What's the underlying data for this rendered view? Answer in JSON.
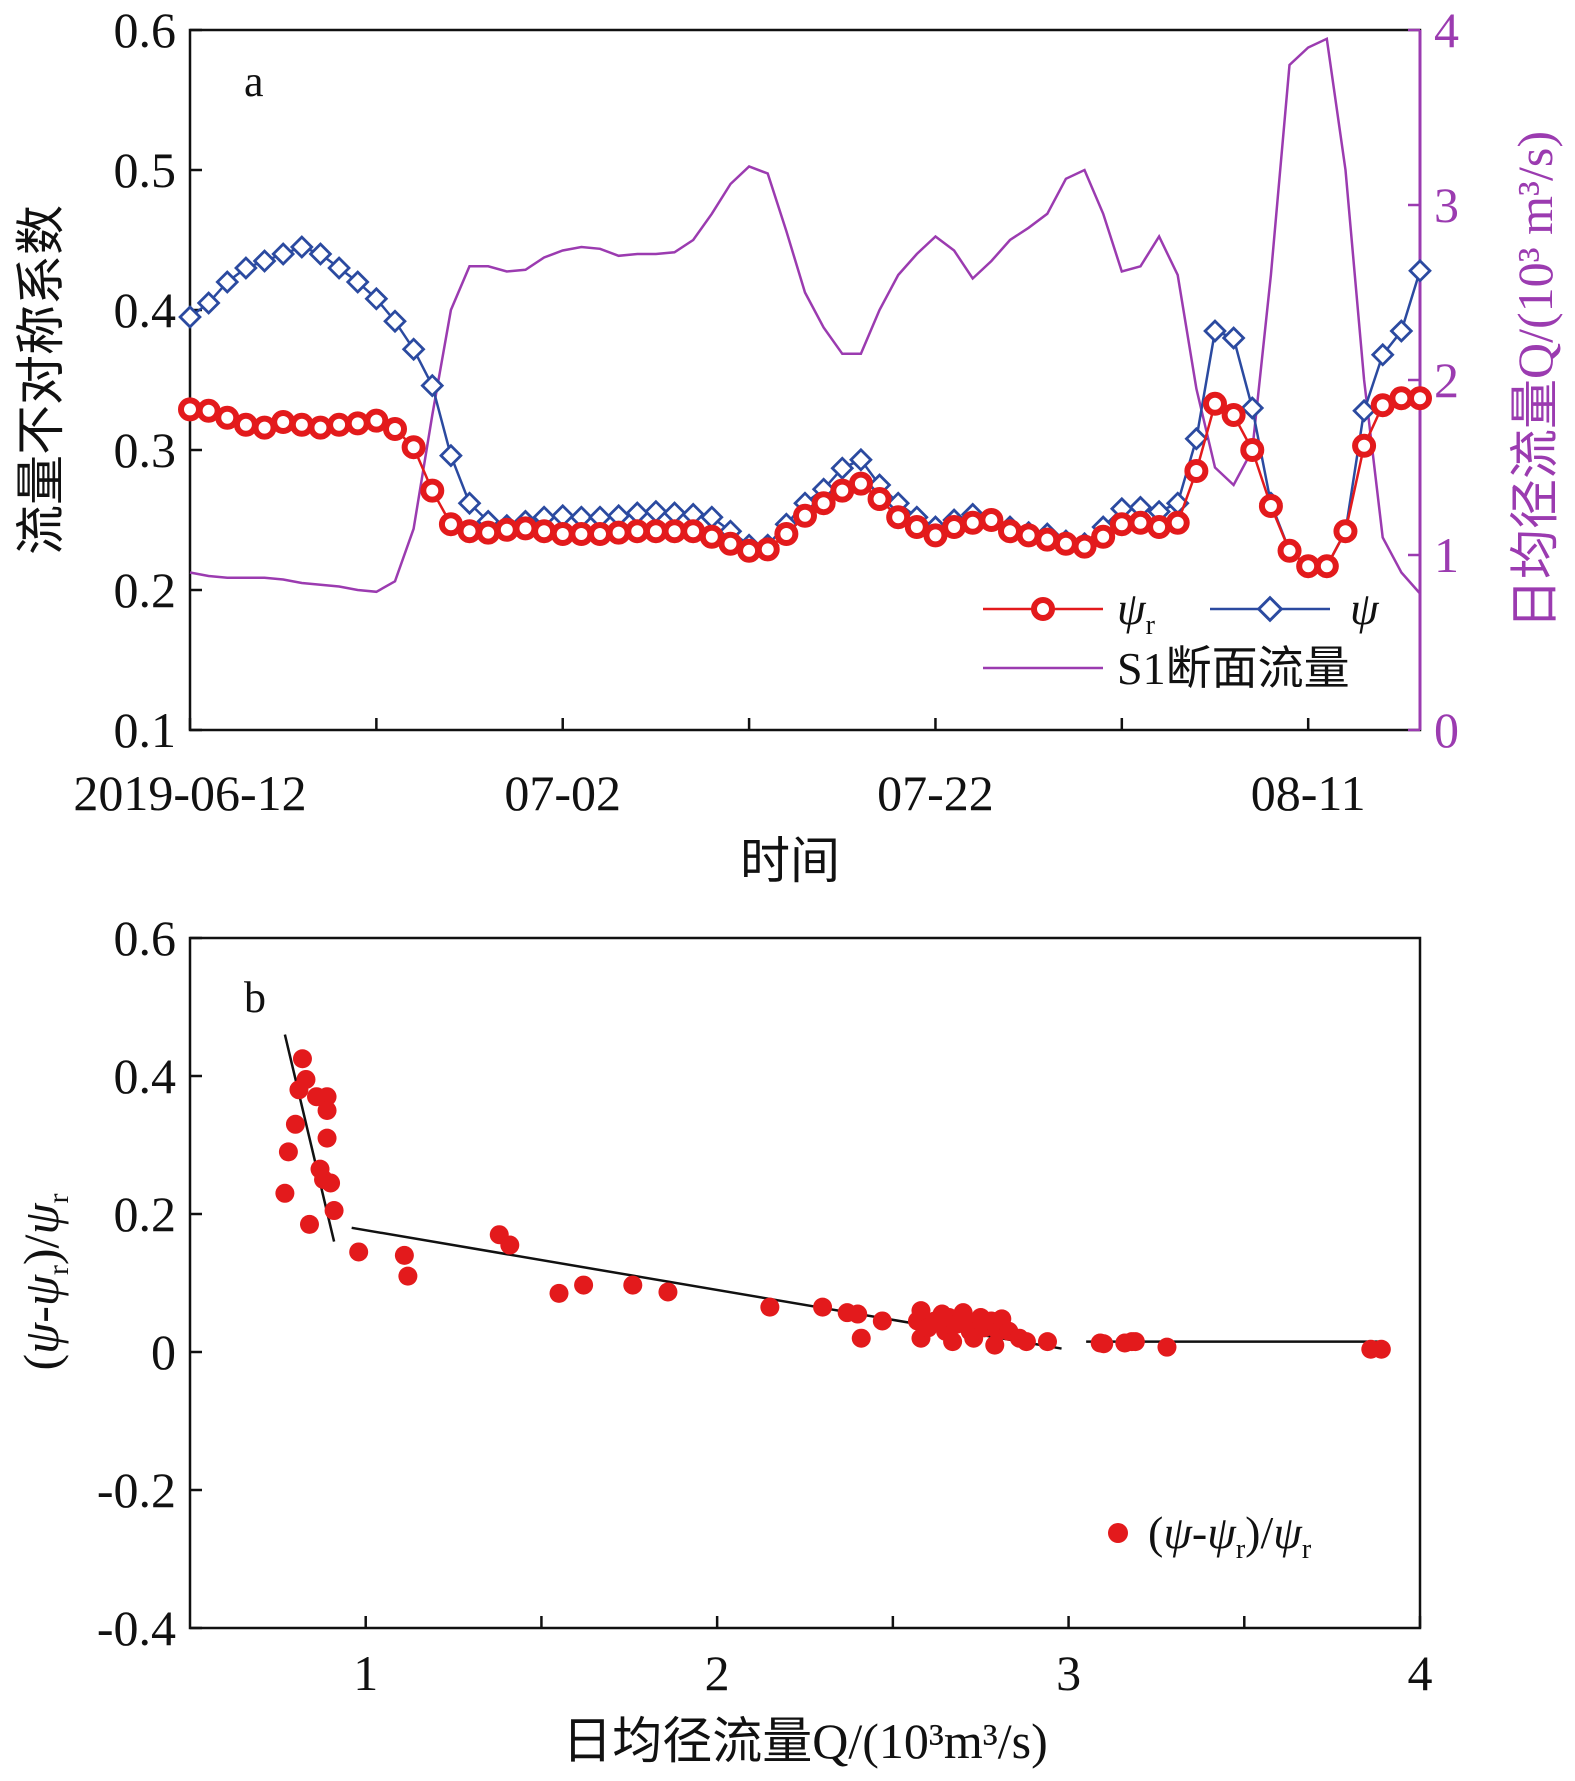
{
  "colors": {
    "psi_r": "#e31a1c",
    "psi": "#2b4aa0",
    "flow": "#9b3bb0",
    "trend": "#111111",
    "axis": "#111111"
  },
  "chart_data": [
    {
      "panel": "a",
      "type": "line",
      "xlabel": "时间",
      "ylabel": "流量不对称系数",
      "y2label": "日均径流量Q/(10³ m³/s)",
      "ylim": [
        0.1,
        0.6
      ],
      "y2lim": [
        0,
        4
      ],
      "xlim_day": [
        0,
        66
      ],
      "y_ticks": [
        "0.1",
        "0.2",
        "0.3",
        "0.4",
        "0.5",
        "0.6"
      ],
      "y2_ticks": [
        "0",
        "1",
        "2",
        "3",
        "4"
      ],
      "x_tick_labels": [
        "2019-06-12",
        "07-02",
        "07-22",
        "08-11"
      ],
      "x_tick_label_days": [
        0,
        20,
        40,
        60
      ],
      "x_minor_tick_days": [
        10,
        30,
        50
      ],
      "x": [
        "06-12",
        "06-13",
        "06-14",
        "06-15",
        "06-16",
        "06-17",
        "06-18",
        "06-19",
        "06-20",
        "06-21",
        "06-22",
        "06-23",
        "06-24",
        "06-25",
        "06-26",
        "06-27",
        "06-28",
        "06-29",
        "06-30",
        "07-01",
        "07-02",
        "07-03",
        "07-04",
        "07-05",
        "07-06",
        "07-07",
        "07-08",
        "07-09",
        "07-10",
        "07-11",
        "07-12",
        "07-13",
        "07-14",
        "07-15",
        "07-16",
        "07-17",
        "07-18",
        "07-19",
        "07-20",
        "07-21",
        "07-22",
        "07-23",
        "07-24",
        "07-25",
        "07-26",
        "07-27",
        "07-28",
        "07-29",
        "07-30",
        "07-31",
        "08-01",
        "08-02",
        "08-03",
        "08-04",
        "08-05",
        "08-06",
        "08-07",
        "08-08",
        "08-09",
        "08-10",
        "08-11",
        "08-12",
        "08-13",
        "08-14",
        "08-15",
        "08-16",
        "08-17"
      ],
      "series": [
        {
          "name": "ψr",
          "legend_main": "ψ",
          "legend_sub": "r",
          "axis": "left",
          "marker": "circle",
          "values": [
            0.329,
            0.328,
            0.323,
            0.318,
            0.316,
            0.32,
            0.318,
            0.316,
            0.318,
            0.319,
            0.321,
            0.315,
            0.302,
            0.271,
            0.247,
            0.242,
            0.241,
            0.243,
            0.244,
            0.242,
            0.24,
            0.24,
            0.24,
            0.241,
            0.242,
            0.242,
            0.242,
            0.242,
            0.238,
            0.233,
            0.228,
            0.229,
            0.24,
            0.253,
            0.262,
            0.271,
            0.276,
            0.265,
            0.252,
            0.245,
            0.239,
            0.245,
            0.248,
            0.25,
            0.242,
            0.239,
            0.236,
            0.233,
            0.231,
            0.238,
            0.247,
            0.248,
            0.245,
            0.248,
            0.285,
            0.333,
            0.325,
            0.3,
            0.26,
            0.228,
            0.217,
            0.217,
            0.242,
            0.303,
            0.332,
            0.337,
            0.337
          ]
        },
        {
          "name": "ψ",
          "legend_main": "ψ",
          "legend_sub": "",
          "axis": "left",
          "marker": "diamond",
          "values": [
            0.395,
            0.405,
            0.42,
            0.43,
            0.435,
            0.44,
            0.445,
            0.44,
            0.43,
            0.42,
            0.408,
            0.392,
            0.372,
            0.346,
            0.296,
            0.262,
            0.249,
            0.246,
            0.249,
            0.252,
            0.253,
            0.252,
            0.252,
            0.253,
            0.255,
            0.256,
            0.255,
            0.254,
            0.252,
            0.242,
            0.232,
            0.232,
            0.247,
            0.262,
            0.272,
            0.287,
            0.293,
            0.275,
            0.262,
            0.252,
            0.245,
            0.25,
            0.254,
            0.25,
            0.245,
            0.241,
            0.24,
            0.235,
            0.233,
            0.245,
            0.258,
            0.259,
            0.256,
            0.262,
            0.308,
            0.385,
            0.38,
            0.33,
            0.262,
            0.228,
            0.217,
            0.217,
            0.242,
            0.328,
            0.368,
            0.385,
            0.428
          ]
        },
        {
          "name": "S1断面流量",
          "axis": "right",
          "marker": "none",
          "values": [
            0.9,
            0.88,
            0.87,
            0.87,
            0.87,
            0.86,
            0.84,
            0.83,
            0.82,
            0.8,
            0.79,
            0.85,
            1.15,
            1.8,
            2.4,
            2.65,
            2.65,
            2.62,
            2.63,
            2.7,
            2.74,
            2.76,
            2.75,
            2.71,
            2.72,
            2.72,
            2.73,
            2.8,
            2.95,
            3.12,
            3.22,
            3.18,
            2.85,
            2.5,
            2.3,
            2.15,
            2.15,
            2.4,
            2.6,
            2.72,
            2.82,
            2.74,
            2.58,
            2.68,
            2.8,
            2.87,
            2.95,
            3.15,
            3.2,
            2.95,
            2.62,
            2.65,
            2.82,
            2.6,
            1.95,
            1.5,
            1.4,
            1.6,
            2.6,
            3.8,
            3.9,
            3.95,
            3.2,
            2.0,
            1.1,
            0.9,
            0.78
          ]
        }
      ],
      "legend": {
        "placement": "bottom-right"
      }
    },
    {
      "panel": "b",
      "type": "scatter",
      "xlabel": "日均径流量Q/(10³m³/s)",
      "ylabel": "(ψ-ψr)/ψr",
      "xlim": [
        0.5,
        4
      ],
      "ylim": [
        -0.4,
        0.6
      ],
      "x_ticks": [
        "1",
        "2",
        "3",
        "4"
      ],
      "y_ticks": [
        "-0.4",
        "-0.2",
        "0",
        "0.2",
        "0.4",
        "0.6"
      ],
      "points": [
        [
          0.77,
          0.23
        ],
        [
          0.78,
          0.29
        ],
        [
          0.8,
          0.33
        ],
        [
          0.81,
          0.38
        ],
        [
          0.82,
          0.425
        ],
        [
          0.83,
          0.395
        ],
        [
          0.84,
          0.185
        ],
        [
          0.86,
          0.37
        ],
        [
          0.87,
          0.265
        ],
        [
          0.88,
          0.25
        ],
        [
          0.89,
          0.37
        ],
        [
          0.89,
          0.35
        ],
        [
          0.89,
          0.31
        ],
        [
          0.9,
          0.245
        ],
        [
          0.91,
          0.205
        ],
        [
          0.98,
          0.145
        ],
        [
          1.11,
          0.14
        ],
        [
          1.12,
          0.11
        ],
        [
          1.38,
          0.17
        ],
        [
          1.41,
          0.155
        ],
        [
          1.55,
          0.085
        ],
        [
          1.62,
          0.097
        ],
        [
          1.76,
          0.097
        ],
        [
          1.86,
          0.087
        ],
        [
          2.15,
          0.065
        ],
        [
          2.3,
          0.065
        ],
        [
          2.37,
          0.057
        ],
        [
          2.4,
          0.055
        ],
        [
          2.41,
          0.02
        ],
        [
          2.47,
          0.045
        ],
        [
          2.57,
          0.045
        ],
        [
          2.58,
          0.06
        ],
        [
          2.58,
          0.02
        ],
        [
          2.6,
          0.035
        ],
        [
          2.62,
          0.045
        ],
        [
          2.64,
          0.055
        ],
        [
          2.65,
          0.03
        ],
        [
          2.66,
          0.05
        ],
        [
          2.67,
          0.015
        ],
        [
          2.68,
          0.04
        ],
        [
          2.7,
          0.057
        ],
        [
          2.71,
          0.045
        ],
        [
          2.72,
          0.03
        ],
        [
          2.73,
          0.02
        ],
        [
          2.75,
          0.05
        ],
        [
          2.76,
          0.035
        ],
        [
          2.78,
          0.045
        ],
        [
          2.79,
          0.01
        ],
        [
          2.8,
          0.03
        ],
        [
          2.81,
          0.048
        ],
        [
          2.83,
          0.03
        ],
        [
          2.86,
          0.02
        ],
        [
          2.88,
          0.015
        ],
        [
          2.94,
          0.015
        ],
        [
          3.09,
          0.013
        ],
        [
          3.1,
          0.012
        ],
        [
          3.16,
          0.013
        ],
        [
          3.18,
          0.015
        ],
        [
          3.19,
          0.015
        ],
        [
          3.28,
          0.007
        ],
        [
          3.86,
          0.004
        ],
        [
          3.89,
          0.004
        ]
      ],
      "trend_lines": [
        {
          "from": [
            0.77,
            0.46
          ],
          "to": [
            0.91,
            0.16
          ]
        },
        {
          "from": [
            0.96,
            0.18
          ],
          "to": [
            2.98,
            0.005
          ]
        },
        {
          "from": [
            3.05,
            0.015
          ],
          "to": [
            3.89,
            0.015
          ]
        }
      ],
      "legend": {
        "placement": "bottom-right",
        "main": "(ψ-ψ",
        "sub": "r",
        "tail": ")/ψ",
        "sub2": "r"
      }
    }
  ]
}
